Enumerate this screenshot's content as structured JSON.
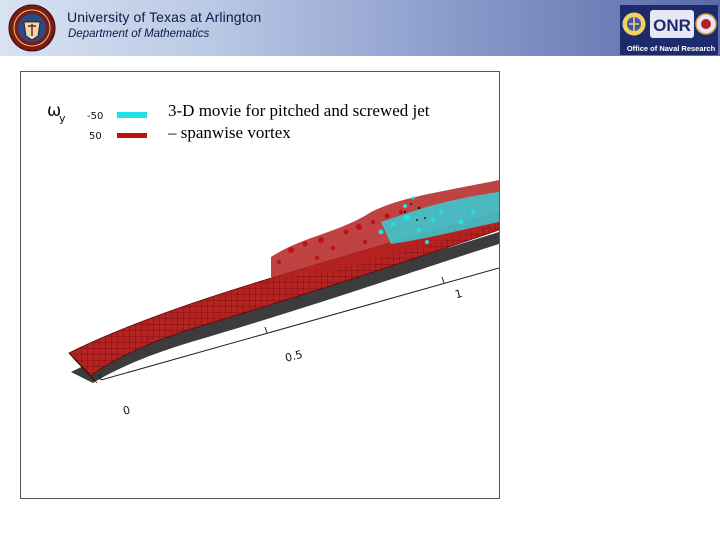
{
  "header": {
    "title": "University of Texas at Arlington",
    "subtitle": "Department of Mathematics",
    "sponsor_caption": "Office of Naval Research",
    "sponsor_logo_text": "ONR"
  },
  "figure": {
    "variable_symbol": "ω",
    "variable_subscript": "y",
    "legend": [
      {
        "value": "-50",
        "color": "#22e0e8"
      },
      {
        "value": "50",
        "color": "#c01010"
      }
    ],
    "axis_labels": [
      "0",
      "0.5",
      "1"
    ],
    "caption_line1": "3-D movie for pitched and screwed jet",
    "caption_line2": "– spanwise vortex"
  },
  "colors": {
    "header_gradient_start": "#d9e2f1",
    "header_gradient_end": "#5a6aa8",
    "positive_vortex": "#c01010",
    "negative_vortex": "#22e0e8"
  }
}
